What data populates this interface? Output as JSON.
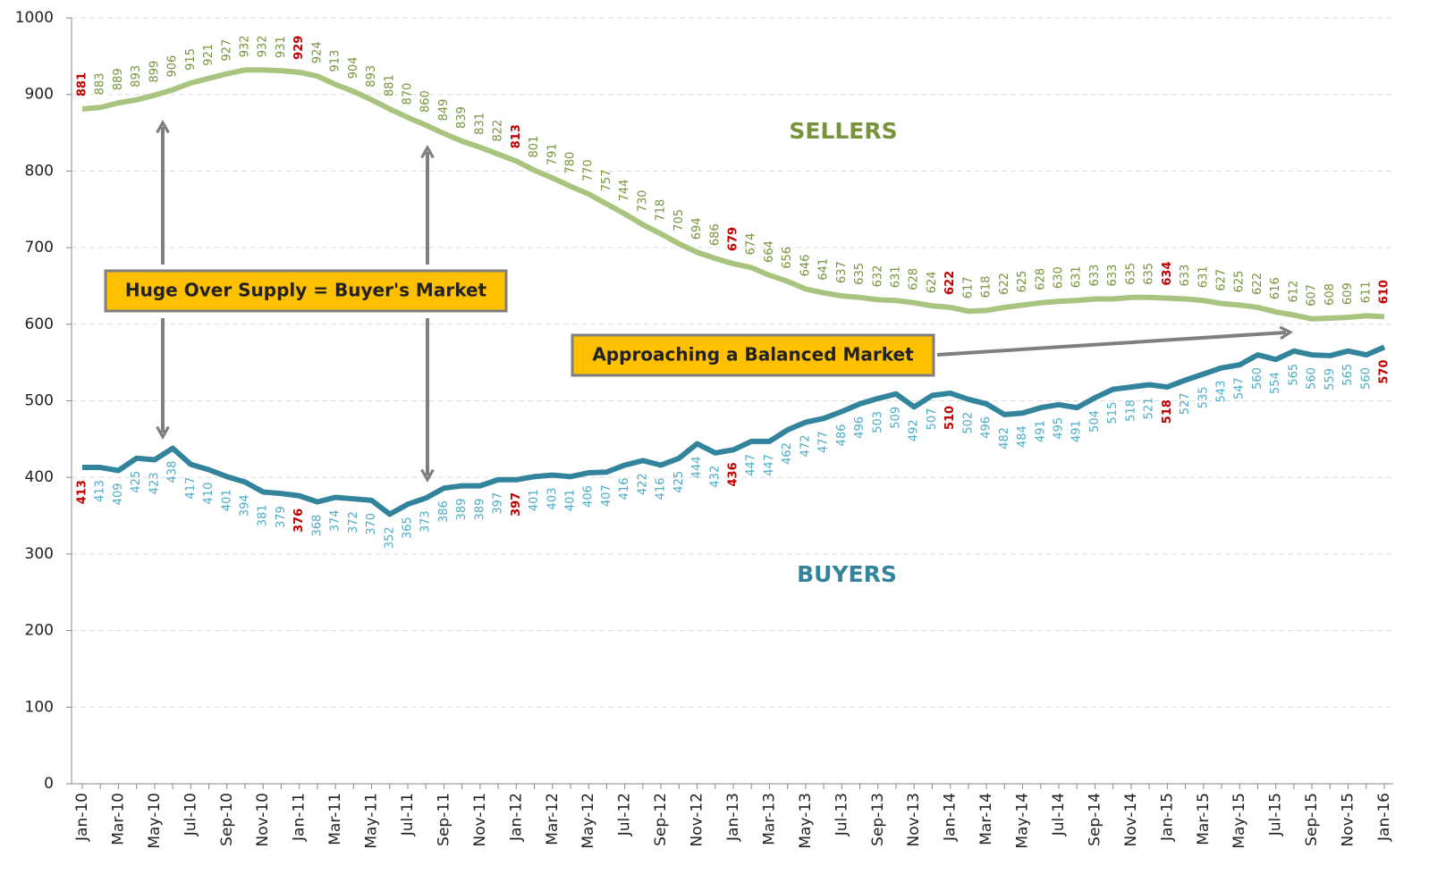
{
  "chart_data": {
    "type": "line",
    "categories": [
      "Jan-10",
      null,
      "Mar-10",
      null,
      "May-10",
      null,
      "Jul-10",
      null,
      "Sep-10",
      null,
      "Nov-10",
      null,
      "Jan-11",
      null,
      "Mar-11",
      null,
      "May-11",
      null,
      "Jul-11",
      null,
      "Sep-11",
      null,
      "Nov-11",
      null,
      "Jan-12",
      null,
      "Mar-12",
      null,
      "May-12",
      null,
      "Jul-12",
      null,
      "Sep-12",
      null,
      "Nov-12",
      null,
      "Jan-13",
      null,
      "Mar-13",
      null,
      "May-13",
      null,
      "Jul-13",
      null,
      "Sep-13",
      null,
      "Nov-13",
      null,
      "Jan-14",
      null,
      "Mar-14",
      null,
      "May-14",
      null,
      "Jul-14",
      null,
      "Sep-14",
      null,
      "Nov-14",
      null,
      "Jan-15",
      null,
      "Mar-15",
      null,
      "May-15",
      null,
      "Jul-15",
      null,
      "Sep-15",
      null,
      "Nov-15",
      null,
      "Jan-16"
    ],
    "series": [
      {
        "name": "SELLERS",
        "color": "#a9c47f",
        "label_color": "#77933c",
        "label_side": "above",
        "values": [
          881,
          883,
          889,
          893,
          899,
          906,
          915,
          921,
          927,
          932,
          932,
          931,
          929,
          924,
          913,
          904,
          893,
          881,
          870,
          860,
          849,
          839,
          831,
          822,
          813,
          801,
          791,
          780,
          770,
          757,
          744,
          730,
          718,
          705,
          694,
          686,
          679,
          674,
          664,
          656,
          646,
          641,
          637,
          635,
          632,
          631,
          628,
          624,
          622,
          617,
          618,
          622,
          625,
          628,
          630,
          631,
          633,
          633,
          635,
          635,
          634,
          633,
          631,
          627,
          625,
          622,
          616,
          612,
          607,
          608,
          609,
          611,
          610
        ]
      },
      {
        "name": "BUYERS",
        "color": "#31849b",
        "label_color": "#4bacc6",
        "label_side": "below",
        "values": [
          413,
          413,
          409,
          425,
          423,
          438,
          417,
          410,
          401,
          394,
          381,
          379,
          376,
          368,
          374,
          372,
          370,
          352,
          365,
          373,
          386,
          389,
          389,
          397,
          397,
          401,
          403,
          401,
          406,
          407,
          416,
          422,
          416,
          425,
          444,
          432,
          436,
          447,
          447,
          462,
          472,
          477,
          486,
          496,
          503,
          509,
          492,
          507,
          510,
          502,
          496,
          482,
          484,
          491,
          495,
          491,
          504,
          515,
          518,
          521,
          518,
          527,
          535,
          543,
          547,
          560,
          554,
          565,
          560,
          559,
          565,
          560,
          570
        ]
      }
    ],
    "label_highlight": {
      "color": "#c00000",
      "indices": [
        0,
        12,
        24,
        36,
        48,
        60,
        72
      ]
    },
    "annotations": [
      "Huge Over Supply = Buyer's Market",
      "Approaching a Balanced Market"
    ],
    "ylim": [
      0,
      1000
    ],
    "yticks": [
      0,
      100,
      200,
      300,
      400,
      500,
      600,
      700,
      800,
      900,
      1000
    ],
    "grid": true
  }
}
